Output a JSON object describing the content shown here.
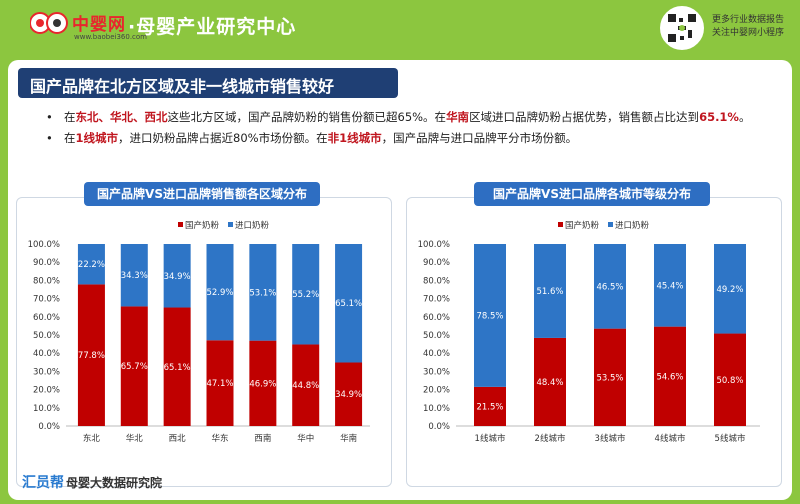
{
  "header": {
    "brand_name": "中婴网",
    "brand_url": "www.baobei360.com",
    "site_title": "·母婴产业研究中心",
    "promo_line1": "更多行业数据报告",
    "promo_line2": "关注中婴网小程序"
  },
  "banner": {
    "title": "国产品牌在北方区域及非一线城市销售较好"
  },
  "bullets": [
    {
      "segments": [
        {
          "t": "在",
          "red": false
        },
        {
          "t": "东北、华北、西北",
          "red": true
        },
        {
          "t": "这些北方区域，国产品牌奶粉的销售份额已超65%。在",
          "red": false
        },
        {
          "t": "华南",
          "red": true
        },
        {
          "t": "区域进口品牌奶粉占据优势，销售额占比达到",
          "red": false
        },
        {
          "t": "65.1%",
          "red": true
        },
        {
          "t": "。",
          "red": false
        }
      ]
    },
    {
      "segments": [
        {
          "t": "在",
          "red": false
        },
        {
          "t": "1线城市",
          "red": true
        },
        {
          "t": "，进口奶粉品牌占据近80%市场份额。在",
          "red": false
        },
        {
          "t": "非1线城市",
          "red": true
        },
        {
          "t": "，国产品牌与进口品牌平分市场份额。",
          "red": false
        }
      ]
    }
  ],
  "footer": {
    "brand": "汇员帮",
    "sub": "母婴大数据研究院"
  },
  "colors": {
    "domestic": "#c00000",
    "imported": "#2e75c6",
    "title_bg": "#2e6ec2",
    "banner_bg": "#1f3f74",
    "page_bg": "#8cc63f"
  },
  "chart_data": [
    {
      "type": "bar",
      "stacked": true,
      "title": "国产品牌VS进口品牌销售额各区域分布",
      "categories": [
        "东北",
        "华北",
        "西北",
        "华东",
        "西南",
        "华中",
        "华南"
      ],
      "series": [
        {
          "name": "国产奶粉",
          "values": [
            77.8,
            65.7,
            65.1,
            47.1,
            46.9,
            44.8,
            34.9
          ],
          "labels": [
            "77.8%",
            "65.7%",
            "65.1%",
            "47.1%",
            "46.9%",
            "44.8%",
            "34.9%"
          ]
        },
        {
          "name": "进口奶粉",
          "values": [
            22.2,
            34.3,
            34.9,
            52.9,
            53.1,
            55.2,
            65.1
          ],
          "labels": [
            "22.2%",
            "34.3%",
            "34.9%",
            "52.9%",
            "53.1%",
            "55.2%",
            "65.1%"
          ]
        }
      ],
      "ylim": [
        0,
        100
      ],
      "yticks": [
        "0.0%",
        "10.0%",
        "20.0%",
        "30.0%",
        "40.0%",
        "50.0%",
        "60.0%",
        "70.0%",
        "80.0%",
        "90.0%",
        "100.0%"
      ],
      "legend": "top"
    },
    {
      "type": "bar",
      "stacked": true,
      "title": "国产品牌VS进口品牌各城市等级分布",
      "categories": [
        "1线城市",
        "2线城市",
        "3线城市",
        "4线城市",
        "5线城市"
      ],
      "series": [
        {
          "name": "国产奶粉",
          "values": [
            21.5,
            48.4,
            53.5,
            54.6,
            50.8
          ],
          "labels": [
            "21.5%",
            "48.4%",
            "53.5%",
            "54.6%",
            "50.8%"
          ]
        },
        {
          "name": "进口奶粉",
          "values": [
            78.5,
            51.6,
            46.5,
            45.4,
            49.2
          ],
          "labels": [
            "78.5%",
            "51.6%",
            "46.5%",
            "45.4%",
            "49.2%"
          ]
        }
      ],
      "ylim": [
        0,
        100
      ],
      "yticks": [
        "0.0%",
        "10.0%",
        "20.0%",
        "30.0%",
        "40.0%",
        "50.0%",
        "60.0%",
        "70.0%",
        "80.0%",
        "90.0%",
        "100.0%"
      ],
      "legend": "top"
    }
  ]
}
